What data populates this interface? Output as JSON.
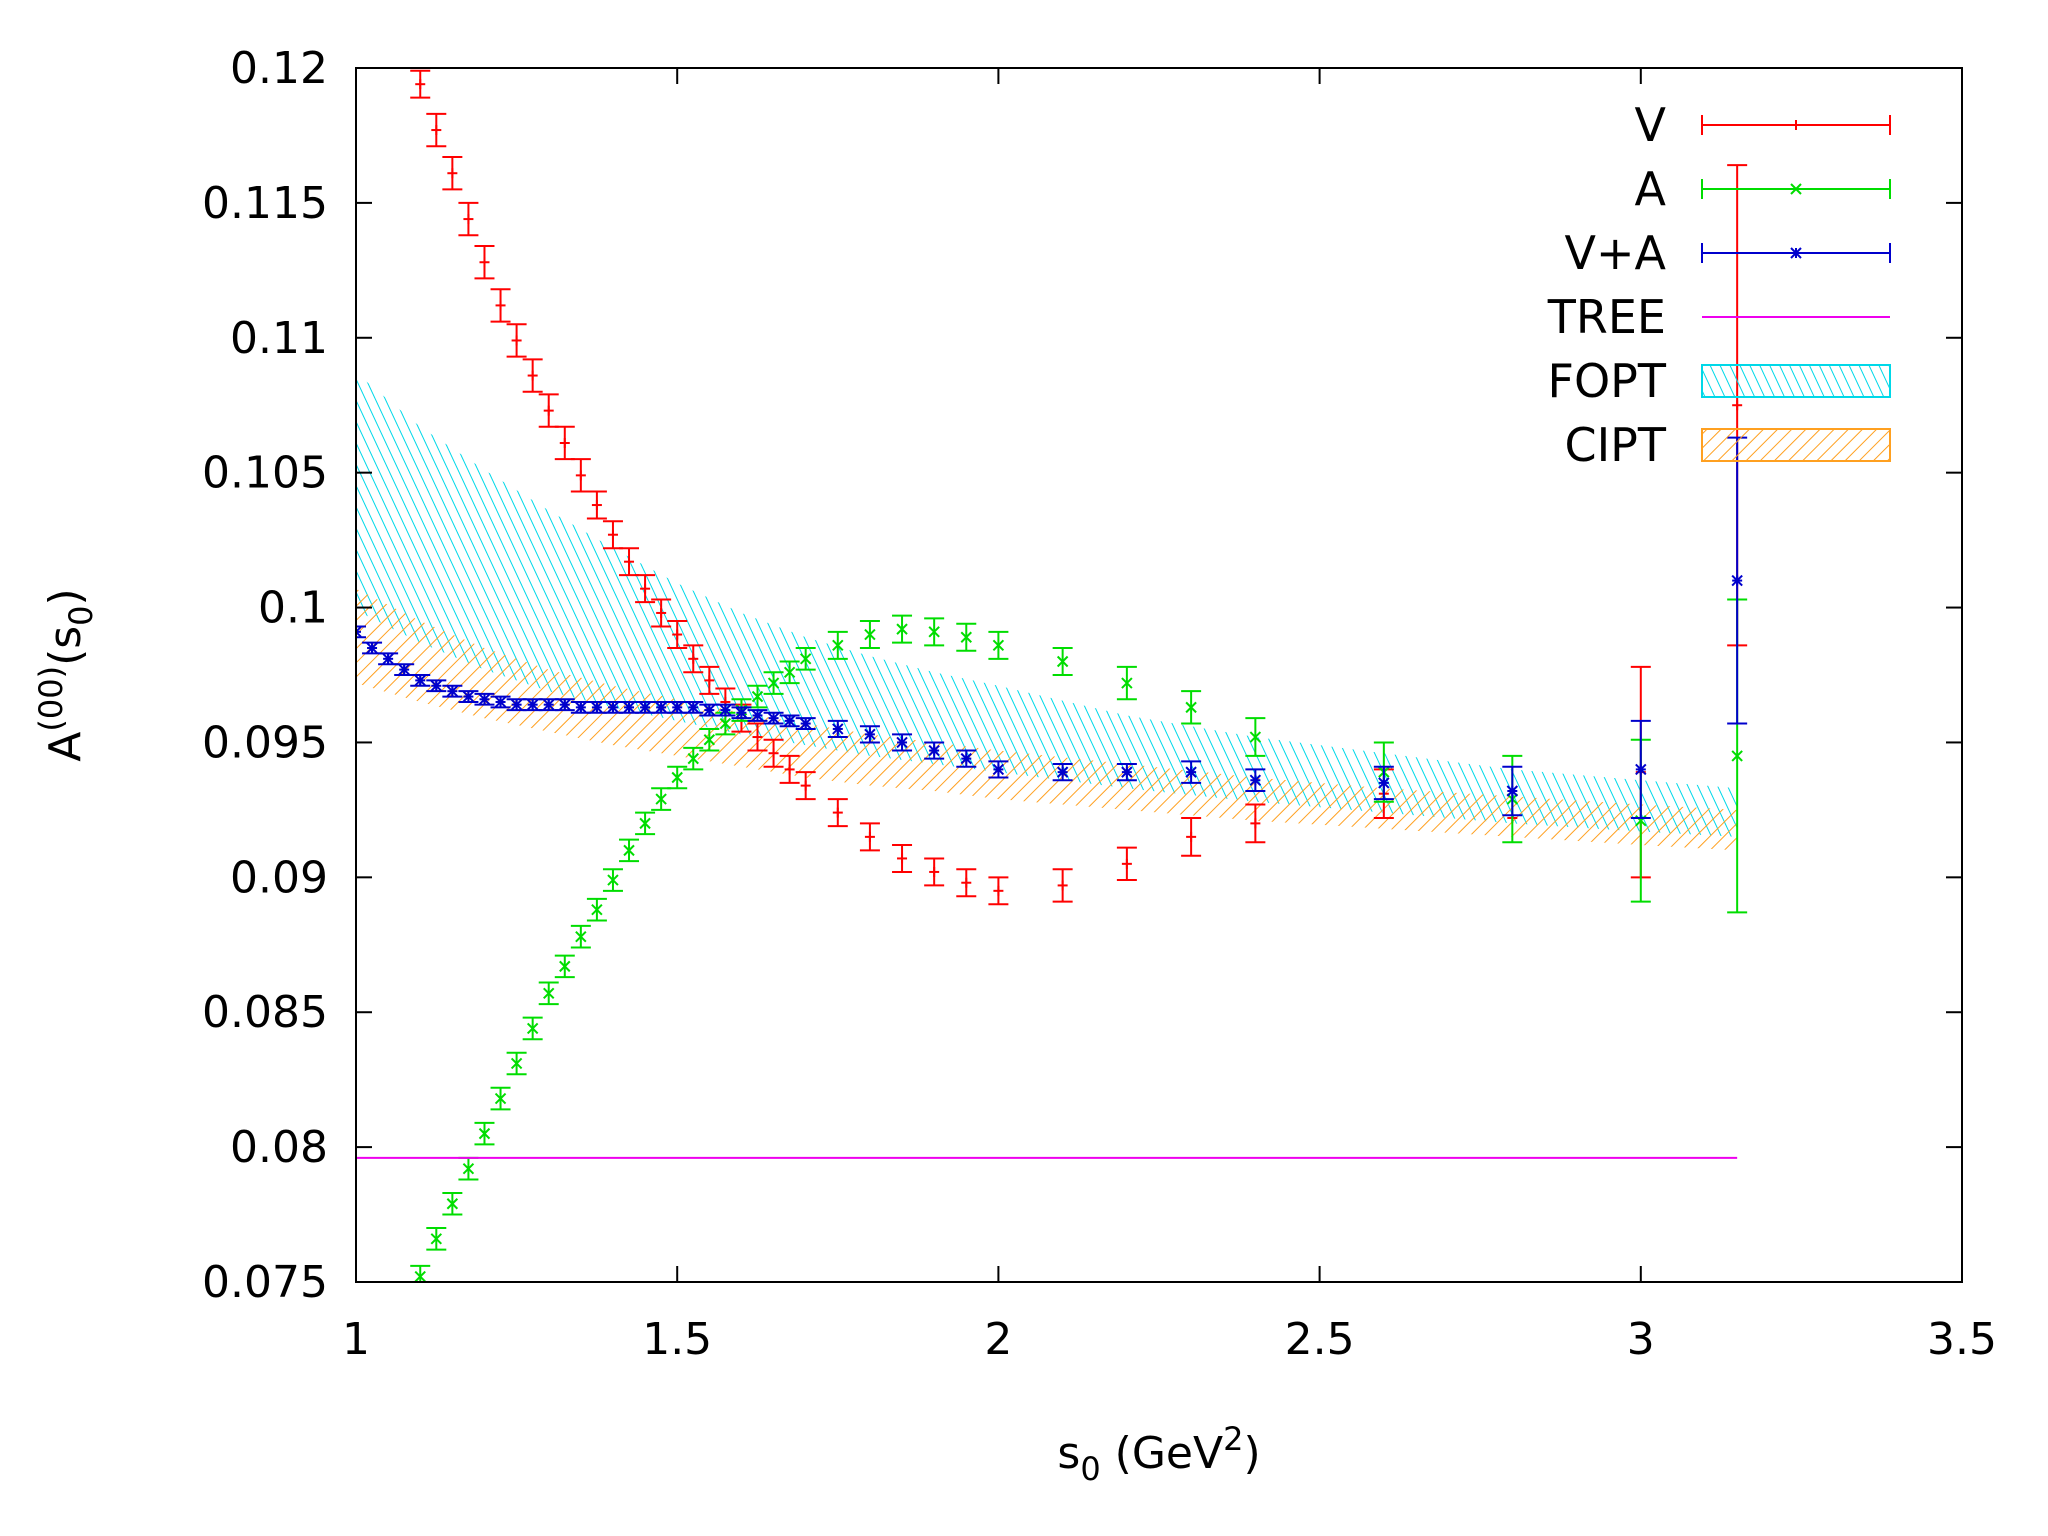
{
  "chart_data": {
    "type": "scatter",
    "xlabel": {
      "main": "s",
      "sub": "0",
      "unit_pre": " (GeV",
      "sup": "2",
      "unit_post": ")"
    },
    "ylabel": {
      "main": "A",
      "sup": "(00)",
      "paren_open": "(s",
      "sub": "0",
      "paren_close": ")"
    },
    "xlim": [
      1,
      3.5
    ],
    "ylim": [
      0.075,
      0.12
    ],
    "xticks": [
      1,
      1.5,
      2,
      2.5,
      3,
      3.5
    ],
    "xtick_labels": [
      "1",
      "1.5",
      "2",
      "2.5",
      "3",
      "3.5"
    ],
    "yticks": [
      0.075,
      0.08,
      0.085,
      0.09,
      0.095,
      0.1,
      0.105,
      0.11,
      0.115,
      0.12
    ],
    "ytick_labels": [
      "0.075",
      "0.08",
      "0.085",
      "0.09",
      "0.095",
      "0.1",
      "0.105",
      "0.11",
      "0.115",
      "0.12"
    ],
    "legend_position": "top-right",
    "series": [
      {
        "name": "V",
        "color": "#ff0000",
        "marker": "plus",
        "points": [
          [
            1.1,
            0.1194,
            0.0005
          ],
          [
            1.125,
            0.1177,
            0.0006
          ],
          [
            1.15,
            0.1161,
            0.0006
          ],
          [
            1.175,
            0.1144,
            0.0006
          ],
          [
            1.2,
            0.1128,
            0.0006
          ],
          [
            1.225,
            0.1112,
            0.0006
          ],
          [
            1.25,
            0.1099,
            0.0006
          ],
          [
            1.275,
            0.1086,
            0.0006
          ],
          [
            1.3,
            0.1073,
            0.0006
          ],
          [
            1.325,
            0.1061,
            0.0006
          ],
          [
            1.35,
            0.1049,
            0.0006
          ],
          [
            1.375,
            0.1038,
            0.0005
          ],
          [
            1.4,
            0.1027,
            0.0005
          ],
          [
            1.425,
            0.1017,
            0.0005
          ],
          [
            1.45,
            0.1007,
            0.0005
          ],
          [
            1.475,
            0.0998,
            0.0005
          ],
          [
            1.5,
            0.099,
            0.0005
          ],
          [
            1.525,
            0.0981,
            0.0005
          ],
          [
            1.55,
            0.0973,
            0.0005
          ],
          [
            1.575,
            0.0965,
            0.0005
          ],
          [
            1.6,
            0.0959,
            0.0005
          ],
          [
            1.625,
            0.0952,
            0.0005
          ],
          [
            1.65,
            0.0946,
            0.0005
          ],
          [
            1.675,
            0.094,
            0.0005
          ],
          [
            1.7,
            0.0934,
            0.0005
          ],
          [
            1.75,
            0.0924,
            0.0005
          ],
          [
            1.8,
            0.0915,
            0.0005
          ],
          [
            1.85,
            0.0907,
            0.0005
          ],
          [
            1.9,
            0.0902,
            0.0005
          ],
          [
            1.95,
            0.0898,
            0.0005
          ],
          [
            2.0,
            0.0895,
            0.0005
          ],
          [
            2.1,
            0.0897,
            0.0006
          ],
          [
            2.2,
            0.0905,
            0.0006
          ],
          [
            2.3,
            0.0915,
            0.0007
          ],
          [
            2.4,
            0.092,
            0.0007
          ],
          [
            2.6,
            0.0931,
            0.0009
          ],
          [
            2.8,
            0.0922,
            0.0
          ],
          [
            3.0,
            0.0939,
            0.0039
          ],
          [
            3.15,
            0.1075,
            0.0089
          ]
        ]
      },
      {
        "name": "A",
        "color": "#00dd00",
        "marker": "cross",
        "points": [
          [
            1.1,
            0.0752,
            0.0004
          ],
          [
            1.125,
            0.0766,
            0.0004
          ],
          [
            1.15,
            0.0779,
            0.0004
          ],
          [
            1.175,
            0.0792,
            0.0004
          ],
          [
            1.2,
            0.0805,
            0.0004
          ],
          [
            1.225,
            0.0818,
            0.0004
          ],
          [
            1.25,
            0.0831,
            0.0004
          ],
          [
            1.275,
            0.0844,
            0.0004
          ],
          [
            1.3,
            0.0857,
            0.0004
          ],
          [
            1.325,
            0.0867,
            0.0004
          ],
          [
            1.35,
            0.0878,
            0.0004
          ],
          [
            1.375,
            0.0888,
            0.0004
          ],
          [
            1.4,
            0.0899,
            0.0004
          ],
          [
            1.425,
            0.091,
            0.0004
          ],
          [
            1.45,
            0.092,
            0.0004
          ],
          [
            1.475,
            0.0929,
            0.0004
          ],
          [
            1.5,
            0.0937,
            0.0004
          ],
          [
            1.525,
            0.0944,
            0.0004
          ],
          [
            1.55,
            0.0951,
            0.0004
          ],
          [
            1.575,
            0.0957,
            0.0004
          ],
          [
            1.6,
            0.0962,
            0.0004
          ],
          [
            1.625,
            0.0967,
            0.0004
          ],
          [
            1.65,
            0.0972,
            0.0004
          ],
          [
            1.675,
            0.0976,
            0.0004
          ],
          [
            1.7,
            0.0981,
            0.0004
          ],
          [
            1.75,
            0.0986,
            0.0005
          ],
          [
            1.8,
            0.099,
            0.0005
          ],
          [
            1.85,
            0.0992,
            0.0005
          ],
          [
            1.9,
            0.0991,
            0.0005
          ],
          [
            1.95,
            0.0989,
            0.0005
          ],
          [
            2.0,
            0.0986,
            0.0005
          ],
          [
            2.1,
            0.098,
            0.0005
          ],
          [
            2.2,
            0.0972,
            0.0006
          ],
          [
            2.3,
            0.0963,
            0.0006
          ],
          [
            2.4,
            0.0952,
            0.0007
          ],
          [
            2.6,
            0.0939,
            0.0011
          ],
          [
            2.8,
            0.0929,
            0.0016
          ],
          [
            3.0,
            0.0921,
            0.003
          ],
          [
            3.15,
            0.0945,
            0.0058
          ]
        ]
      },
      {
        "name": "V+A",
        "color": "#0000cc",
        "marker": "star",
        "points": [
          [
            1.0,
            0.0991,
            0.0002
          ],
          [
            1.025,
            0.0985,
            0.0002
          ],
          [
            1.05,
            0.0981,
            0.0002
          ],
          [
            1.075,
            0.0977,
            0.0002
          ],
          [
            1.1,
            0.0973,
            0.0002
          ],
          [
            1.125,
            0.0971,
            0.0002
          ],
          [
            1.15,
            0.0969,
            0.0002
          ],
          [
            1.175,
            0.0967,
            0.0002
          ],
          [
            1.2,
            0.0966,
            0.0002
          ],
          [
            1.225,
            0.0965,
            0.0002
          ],
          [
            1.25,
            0.0964,
            0.0002
          ],
          [
            1.275,
            0.0964,
            0.0002
          ],
          [
            1.3,
            0.0964,
            0.0002
          ],
          [
            1.325,
            0.0964,
            0.0002
          ],
          [
            1.35,
            0.0963,
            0.0002
          ],
          [
            1.375,
            0.0963,
            0.0002
          ],
          [
            1.4,
            0.0963,
            0.0002
          ],
          [
            1.425,
            0.0963,
            0.0002
          ],
          [
            1.45,
            0.0963,
            0.0002
          ],
          [
            1.475,
            0.0963,
            0.0002
          ],
          [
            1.5,
            0.0963,
            0.0002
          ],
          [
            1.525,
            0.0963,
            0.0002
          ],
          [
            1.55,
            0.0962,
            0.0002
          ],
          [
            1.575,
            0.0962,
            0.0002
          ],
          [
            1.6,
            0.0961,
            0.0002
          ],
          [
            1.625,
            0.096,
            0.0002
          ],
          [
            1.65,
            0.0959,
            0.0002
          ],
          [
            1.675,
            0.0958,
            0.0002
          ],
          [
            1.7,
            0.0957,
            0.0002
          ],
          [
            1.75,
            0.0955,
            0.0003
          ],
          [
            1.8,
            0.0953,
            0.0003
          ],
          [
            1.85,
            0.095,
            0.0003
          ],
          [
            1.9,
            0.0947,
            0.0003
          ],
          [
            1.95,
            0.0944,
            0.0003
          ],
          [
            2.0,
            0.094,
            0.0003
          ],
          [
            2.1,
            0.0939,
            0.0003
          ],
          [
            2.2,
            0.0939,
            0.0003
          ],
          [
            2.3,
            0.0939,
            0.0004
          ],
          [
            2.4,
            0.0936,
            0.0004
          ],
          [
            2.6,
            0.0935,
            0.0006
          ],
          [
            2.8,
            0.0932,
            0.0009
          ],
          [
            3.0,
            0.094,
            0.0018
          ],
          [
            3.15,
            0.101,
            0.0053
          ]
        ]
      },
      {
        "name": "TREE",
        "color": "#ee00ee",
        "marker": "line",
        "points": [
          [
            1.0,
            0.0796,
            0.0
          ],
          [
            3.15,
            0.0796,
            0.0
          ]
        ]
      }
    ],
    "bands": [
      {
        "name": "FOPT",
        "color": "#00d8e8",
        "x": [
          1.0,
          1.1,
          1.2,
          1.3,
          1.4,
          1.5,
          1.6,
          1.7,
          1.8,
          1.9,
          2.0,
          2.2,
          2.4,
          2.6,
          2.8,
          3.0,
          3.15
        ],
        "lower": [
          0.0999,
          0.0987,
          0.0977,
          0.0969,
          0.0963,
          0.0958,
          0.0953,
          0.0949,
          0.0945,
          0.0942,
          0.0939,
          0.0933,
          0.0928,
          0.0924,
          0.092,
          0.0917,
          0.0915
        ],
        "upper": [
          0.1087,
          0.1067,
          0.1051,
          0.1036,
          0.1022,
          0.1009,
          0.0998,
          0.0989,
          0.0982,
          0.0976,
          0.0971,
          0.096,
          0.0952,
          0.0946,
          0.094,
          0.0936,
          0.0933
        ]
      },
      {
        "name": "CIPT",
        "color": "#ffa020",
        "x": [
          1.0,
          1.1,
          1.2,
          1.3,
          1.4,
          1.5,
          1.6,
          1.7,
          1.8,
          1.9,
          2.0,
          2.2,
          2.4,
          2.6,
          2.8,
          3.0,
          3.15
        ],
        "lower": [
          0.0972,
          0.0965,
          0.0959,
          0.0954,
          0.0949,
          0.0945,
          0.0941,
          0.0937,
          0.0934,
          0.0932,
          0.0929,
          0.0925,
          0.0921,
          0.0918,
          0.0915,
          0.0912,
          0.091
        ],
        "upper": [
          0.1007,
          0.0995,
          0.0985,
          0.0977,
          0.0971,
          0.0966,
          0.0961,
          0.0957,
          0.0953,
          0.095,
          0.0947,
          0.0942,
          0.0937,
          0.0933,
          0.093,
          0.0927,
          0.0925
        ]
      }
    ],
    "legend": [
      {
        "label": "V",
        "kind": "errorbar",
        "color": "#ff0000",
        "marker": "plus"
      },
      {
        "label": "A",
        "kind": "errorbar",
        "color": "#00dd00",
        "marker": "cross"
      },
      {
        "label": "V+A",
        "kind": "errorbar",
        "color": "#0000cc",
        "marker": "star"
      },
      {
        "label": "TREE",
        "kind": "line",
        "color": "#ee00ee"
      },
      {
        "label": "FOPT",
        "kind": "band",
        "color": "#00d8e8"
      },
      {
        "label": "CIPT",
        "kind": "band",
        "color": "#ffa020"
      }
    ]
  }
}
